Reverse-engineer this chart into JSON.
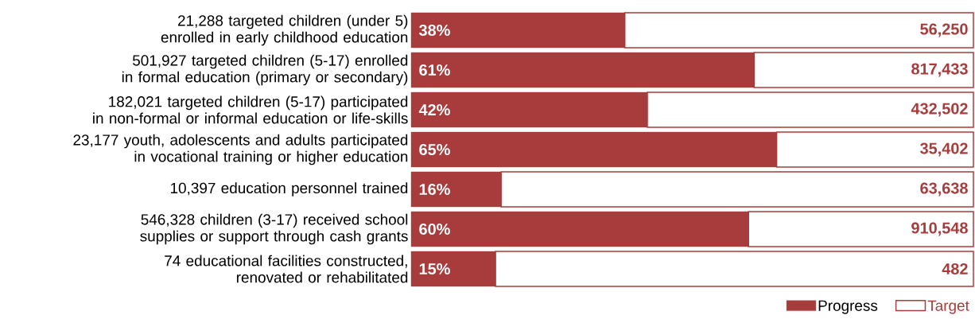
{
  "chart_data": {
    "type": "bar",
    "orientation": "horizontal",
    "stacked": true,
    "tick_labels": "y",
    "legend": "bottom right",
    "categories": [
      "21,288 targeted children (under 5) enrolled in early childhood education",
      "501,927 targeted children (5-17) enrolled in formal education (primary or secondary)",
      "182,021 targeted children (5-17) participated in non-formal or informal education or life-skills",
      "23,177 youth, adolescents and adults participated in vocational training or higher education",
      "10,397 education personnel trained",
      "546,328 children (3-17) received school supplies or support through cash grants",
      "74 educational facilities constructed, renovated or rehabilitated"
    ],
    "series": [
      {
        "name": "Progress",
        "color": "#a83c3c",
        "values": [
          38,
          61,
          42,
          65,
          16,
          60,
          15
        ],
        "value_labels": [
          "38%",
          "61%",
          "42%",
          "65%",
          "16%",
          "60%",
          "15%"
        ]
      },
      {
        "name": "Target",
        "color": "#a83c3c",
        "values": [
          62,
          39,
          58,
          35,
          84,
          40,
          85
        ]
      }
    ],
    "annotations": [
      "56,250",
      "817,433",
      "432,502",
      "35,402",
      "63,638",
      "910,548",
      "482"
    ]
  }
}
